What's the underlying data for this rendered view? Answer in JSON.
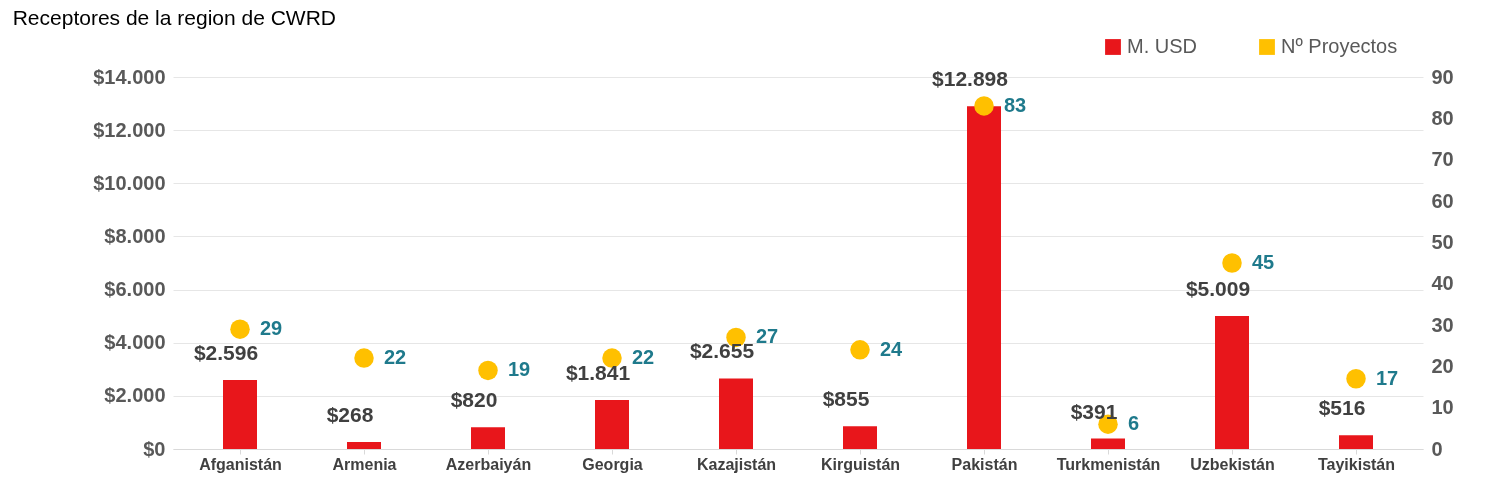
{
  "chart_data": {
    "type": "bar",
    "title": "Receptores de la region de CWRD",
    "categories": [
      "Afganistán",
      "Armenia",
      "Azerbaiyán",
      "Georgia",
      "Kazajistán",
      "Kirguistán",
      "Pakistán",
      "Turkmenistán",
      "Uzbekistán",
      "Tayikistán"
    ],
    "series": [
      {
        "name": "M. USD",
        "color": "#e8161b",
        "values": [
          2596,
          268,
          820,
          1841,
          2655,
          855,
          12898,
          391,
          5009,
          516
        ],
        "value_labels": [
          "$2.596",
          "$268",
          "$820",
          "$1.841",
          "$2.655",
          "$855",
          "$12.898",
          "$391",
          "$5.009",
          "$516"
        ]
      },
      {
        "name": "Nº Proyectos",
        "type": "scatter",
        "axis": "y2",
        "color": "#ffc000",
        "values": [
          29,
          22,
          19,
          22,
          27,
          24,
          83,
          6,
          45,
          17
        ],
        "value_labels": [
          "29",
          "22",
          "19",
          "22",
          "27",
          "24",
          "83",
          "6",
          "45",
          "17"
        ]
      }
    ],
    "ylim": [
      0,
      14000
    ],
    "yticks": [
      {
        "value": 0,
        "label": "$0"
      },
      {
        "value": 2000,
        "label": "$2.000"
      },
      {
        "value": 4000,
        "label": "$4.000"
      },
      {
        "value": 6000,
        "label": "$6.000"
      },
      {
        "value": 8000,
        "label": "$8.000"
      },
      {
        "value": 10000,
        "label": "$10.000"
      },
      {
        "value": 12000,
        "label": "$12.000"
      },
      {
        "value": 14000,
        "label": "$14.000"
      }
    ],
    "y2lim": [
      0,
      90
    ],
    "y2ticks": [
      0,
      10,
      20,
      30,
      40,
      50,
      60,
      70,
      80,
      90
    ],
    "grid": "y",
    "legend": "top right",
    "marker": "circle"
  }
}
